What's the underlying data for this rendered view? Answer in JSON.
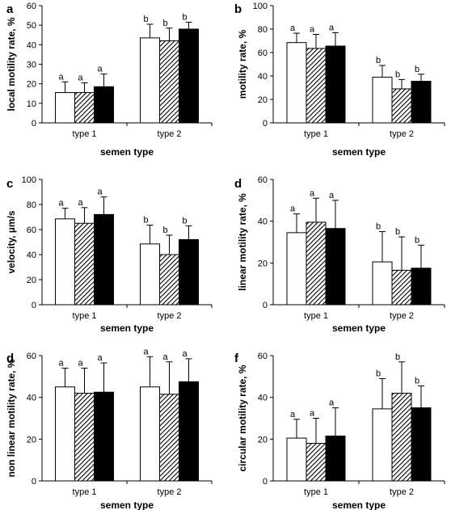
{
  "chart_data": [
    {
      "panel_label": "a",
      "type": "bar",
      "ylabel": "local motility rate, %",
      "xlabel": "semen type",
      "categories": [
        "type 1",
        "type 2"
      ],
      "ylim": [
        0,
        60
      ],
      "yticks": [
        0,
        10,
        20,
        30,
        40,
        50,
        60
      ],
      "series_fills": [
        "white",
        "hatched",
        "black"
      ],
      "values": [
        [
          15.5,
          15.5,
          18.5
        ],
        [
          43.5,
          42,
          48
        ]
      ],
      "errors": [
        [
          5.5,
          5,
          6.5
        ],
        [
          7,
          6.5,
          3.5
        ]
      ],
      "sig_labels": [
        [
          "a",
          "a",
          "a"
        ],
        [
          "b",
          "b",
          "b"
        ]
      ]
    },
    {
      "panel_label": "b",
      "type": "bar",
      "ylabel": "motility rate, %",
      "xlabel": "semen type",
      "categories": [
        "type 1",
        "type 2"
      ],
      "ylim": [
        0,
        100
      ],
      "yticks": [
        0,
        20,
        40,
        60,
        80,
        100
      ],
      "series_fills": [
        "white",
        "hatched",
        "black"
      ],
      "values": [
        [
          68.5,
          63.5,
          65.5
        ],
        [
          39,
          29,
          35.5
        ]
      ],
      "errors": [
        [
          8,
          12,
          11.5
        ],
        [
          10,
          8,
          6
        ]
      ],
      "sig_labels": [
        [
          "a",
          "a",
          "a"
        ],
        [
          "b",
          "b",
          "b"
        ]
      ]
    },
    {
      "panel_label": "c",
      "type": "bar",
      "ylabel": "velocity, µm/s",
      "xlabel": "semen type",
      "categories": [
        "type 1",
        "type 2"
      ],
      "ylim": [
        0,
        100
      ],
      "yticks": [
        0,
        20,
        40,
        60,
        80,
        100
      ],
      "series_fills": [
        "white",
        "hatched",
        "black"
      ],
      "values": [
        [
          68.5,
          65,
          72
        ],
        [
          48.5,
          40,
          52
        ]
      ],
      "errors": [
        [
          8.5,
          12.5,
          14
        ],
        [
          15,
          15.5,
          11
        ]
      ],
      "sig_labels": [
        [
          "a",
          "a",
          "a"
        ],
        [
          "b",
          "b",
          "b"
        ]
      ]
    },
    {
      "panel_label": "d",
      "type": "bar",
      "ylabel": "linear motility rate, %",
      "xlabel": "semen type",
      "categories": [
        "type 1",
        "type 2"
      ],
      "ylim": [
        0,
        60
      ],
      "yticks": [
        0,
        20,
        40,
        60
      ],
      "series_fills": [
        "white",
        "hatched",
        "black"
      ],
      "values": [
        [
          34.5,
          39.5,
          36.5
        ],
        [
          20.5,
          16.5,
          17.5
        ]
      ],
      "errors": [
        [
          9,
          11.5,
          13.5
        ],
        [
          14.5,
          16,
          11
        ]
      ],
      "sig_labels": [
        [
          "a",
          "a",
          "a"
        ],
        [
          "b",
          "b",
          "b"
        ]
      ]
    },
    {
      "panel_label": "d",
      "type": "bar",
      "ylabel": "non linear motility rate, %",
      "xlabel": "semen type",
      "categories": [
        "type 1",
        "type 2"
      ],
      "ylim": [
        0,
        60
      ],
      "yticks": [
        0,
        20,
        40,
        60
      ],
      "series_fills": [
        "white",
        "hatched",
        "black"
      ],
      "values": [
        [
          45,
          42,
          42.5
        ],
        [
          45,
          41.5,
          47.5
        ]
      ],
      "errors": [
        [
          9,
          12,
          14
        ],
        [
          14.5,
          15.5,
          11
        ]
      ],
      "sig_labels": [
        [
          "a",
          "a",
          "a"
        ],
        [
          "a",
          "a",
          "a"
        ]
      ]
    },
    {
      "panel_label": "f",
      "type": "bar",
      "ylabel": "circular motility rate, %",
      "xlabel": "semen type",
      "categories": [
        "type 1",
        "type 2"
      ],
      "ylim": [
        0,
        60
      ],
      "yticks": [
        0,
        20,
        40,
        60
      ],
      "series_fills": [
        "white",
        "hatched",
        "black"
      ],
      "values": [
        [
          20.5,
          18,
          21.5
        ],
        [
          34.5,
          42,
          35
        ]
      ],
      "errors": [
        [
          9,
          12,
          13.5
        ],
        [
          14.5,
          15,
          10.5
        ]
      ],
      "sig_labels": [
        [
          "a",
          "a",
          "a"
        ],
        [
          "b",
          "b",
          "b"
        ]
      ]
    }
  ]
}
